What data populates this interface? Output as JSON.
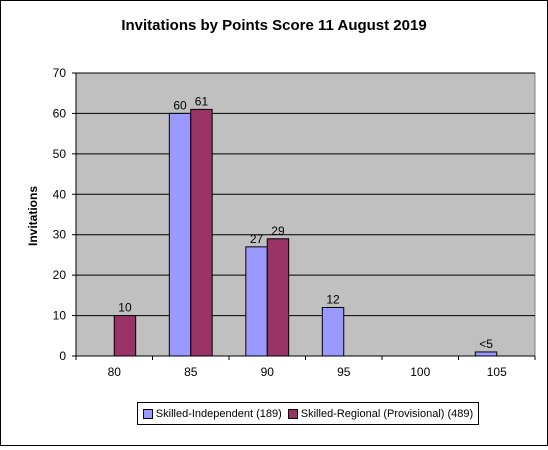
{
  "chart_data": {
    "type": "bar",
    "title": "Invitations by Points Score 11 August 2019",
    "xlabel": "",
    "ylabel": "Invitations",
    "categories": [
      "80",
      "85",
      "90",
      "95",
      "100",
      "105"
    ],
    "ylim": [
      0,
      70
    ],
    "yticks": [
      "0",
      "10",
      "20",
      "30",
      "40",
      "50",
      "60",
      "70"
    ],
    "grid": true,
    "plot_background": "#c0c0c0",
    "legend_position": "bottom",
    "series": [
      {
        "name": "Skilled-Independent (189)",
        "color": "#9999ff",
        "values": [
          0,
          60,
          27,
          12,
          0,
          1
        ],
        "labels": [
          "",
          "60",
          "27",
          "12",
          "",
          "<5"
        ]
      },
      {
        "name": "Skilled-Regional (Provisional) (489)",
        "color": "#993366",
        "values": [
          10,
          61,
          29,
          0,
          0,
          0
        ],
        "labels": [
          "10",
          "61",
          "29",
          "",
          "",
          ""
        ]
      }
    ]
  }
}
